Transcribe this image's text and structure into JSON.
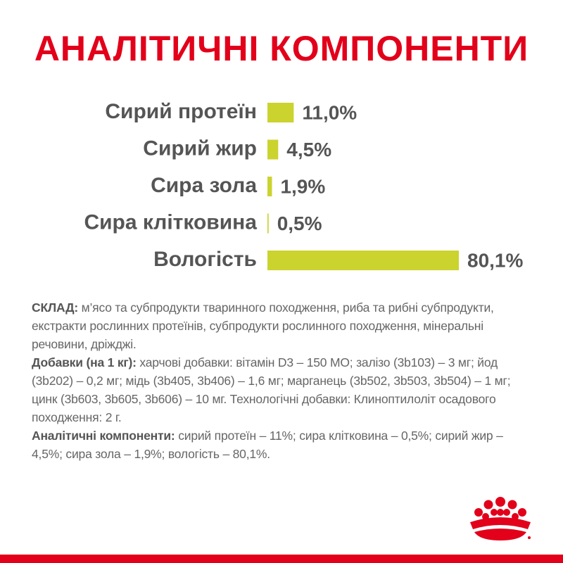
{
  "chart_data": {
    "type": "bar",
    "orientation": "horizontal",
    "title": "АНАЛІТИЧНІ КОМПОНЕНТИ",
    "categories": [
      "Сирий протеїн",
      "Сирий жир",
      "Сира зола",
      "Сира клітковина",
      "Вологість"
    ],
    "values": [
      11.0,
      4.5,
      1.9,
      0.5,
      80.1
    ],
    "value_labels": [
      "11,0%",
      "4,5%",
      "1,9%",
      "0,5%",
      "80,1%"
    ],
    "color": "#cbd32e"
  },
  "composition": {
    "paragraphs": [
      {
        "label": "СКЛАД:",
        "text": "м’ясо та субпродукти тваринного походження, риба та рибні субпродукти, екстракти рослинних протеїнів, субпродукти рослинного походження, мінеральні речовини, дріжджі."
      },
      {
        "label": "Добавки (на 1 кг):",
        "text": "харчові добавки: вітамін D3 – 150 МО; залізо (3b103) – 3 мг; йод (3b202) – 0,2 мг; мідь (3b405, 3b406) – 1,6 мг; марганець (3b502, 3b503, 3b504) – 1 мг; цинк (3b603, 3b605, 3b606) – 10 мг. Технологічні добавки: Клиноптилоліт осадового походження: 2 г."
      },
      {
        "label": "Аналітичні компоненти:",
        "text": "сирий протеїн – 11%; сира клітковина – 0,5%; сирий жир – 4,5%; сира зола – 1,9%; вологість – 80,1%."
      }
    ]
  }
}
